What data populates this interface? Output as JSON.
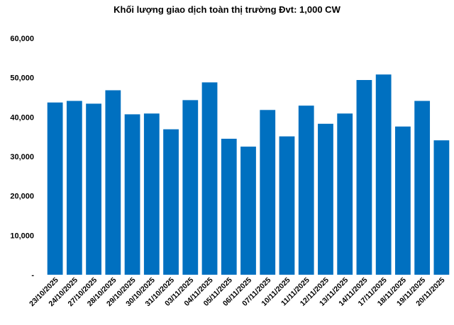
{
  "chart_data": {
    "type": "bar",
    "title": "Khối lượng giao dịch toàn thị trường Đvt: 1,000 CW",
    "xlabel": "",
    "ylabel": "",
    "ylim": [
      0,
      60000
    ],
    "y_ticks": [
      0,
      10000,
      20000,
      30000,
      40000,
      50000,
      60000
    ],
    "y_tick_labels": [
      "-",
      "10,000",
      "20,000",
      "30,000",
      "40,000",
      "50,000",
      "60,000"
    ],
    "grid": false,
    "legend": "none",
    "bar_color": "#0070C0",
    "categories": [
      "23/10/2025",
      "24/10/2025",
      "27/10/2025",
      "28/10/2025",
      "29/10/2025",
      "30/10/2025",
      "31/10/2025",
      "03/11/2025",
      "04/11/2025",
      "05/11/2025",
      "06/11/2025",
      "07/11/2025",
      "10/11/2025",
      "11/11/2025",
      "12/11/2025",
      "13/11/2025",
      "14/11/2025",
      "17/11/2025",
      "18/11/2025",
      "19/11/2025",
      "20/11/2025"
    ],
    "values": [
      43700,
      44100,
      43400,
      46800,
      40700,
      40900,
      36900,
      44300,
      48800,
      34500,
      32500,
      41800,
      35100,
      42900,
      38300,
      40900,
      49400,
      50800,
      37600,
      44100,
      34100
    ]
  }
}
